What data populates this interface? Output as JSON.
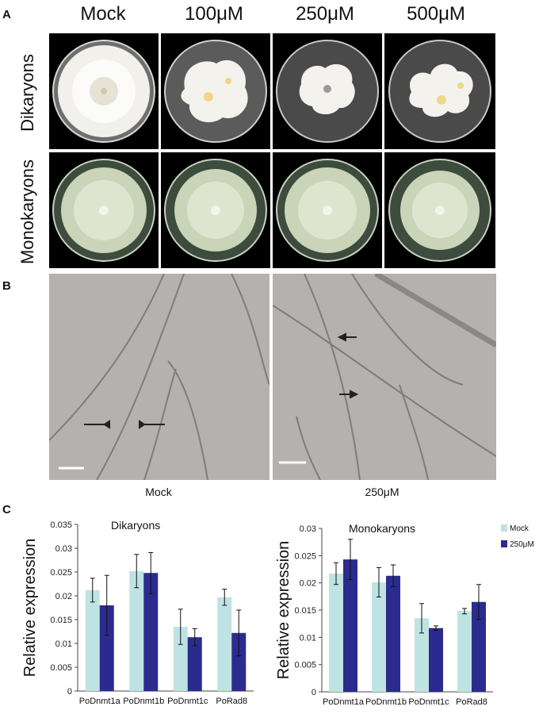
{
  "panel_a": {
    "letter": "A",
    "concentrations": [
      "Mock",
      "100μM",
      "250μM",
      "500μM"
    ],
    "rows": [
      "Dikaryons",
      "Monokaryons"
    ]
  },
  "panel_b": {
    "letter": "B",
    "captions": [
      "Mock",
      "250μM"
    ]
  },
  "panel_c": {
    "letter": "C",
    "legend": [
      "Mock",
      "250μM"
    ],
    "colors": {
      "mock": "#bfe3e3",
      "treated": "#2b2b8f"
    }
  },
  "chart_data": [
    {
      "type": "bar",
      "title": "Dikaryons",
      "ylabel": "Relative  expression",
      "categories": [
        "PoDnmt1a",
        "PoDnmt1b",
        "PoDnmt1c",
        "PoRad8"
      ],
      "ylim": [
        0,
        0.035
      ],
      "yticks": [
        "0",
        "0.005",
        "0.01",
        "0.015",
        "0.02",
        "0.025",
        "0.03",
        "0.035"
      ],
      "series": [
        {
          "name": "Mock",
          "values": [
            0.0212,
            0.0252,
            0.0135,
            0.0197
          ],
          "errors": [
            0.0025,
            0.0035,
            0.0037,
            0.0017
          ]
        },
        {
          "name": "250μM",
          "values": [
            0.018,
            0.0248,
            0.0113,
            0.0122
          ],
          "errors": [
            0.0063,
            0.0043,
            0.0018,
            0.0048
          ]
        }
      ]
    },
    {
      "type": "bar",
      "title": "Monokaryons",
      "ylabel": "Relative  expression",
      "categories": [
        "PoDnmt1a",
        "PoDnmt1b",
        "PoDnmt1c",
        "PoRad8"
      ],
      "ylim": [
        0,
        0.03
      ],
      "yticks": [
        "0",
        "0.005",
        "0.01",
        "0.015",
        "0.02",
        "0.025",
        "0.03"
      ],
      "series": [
        {
          "name": "Mock",
          "values": [
            0.0217,
            0.0201,
            0.0135,
            0.0148
          ],
          "errors": [
            0.002,
            0.0027,
            0.0027,
            0.0005
          ]
        },
        {
          "name": "250μM",
          "values": [
            0.0243,
            0.0213,
            0.0117,
            0.0165
          ],
          "errors": [
            0.0037,
            0.002,
            0.0004,
            0.0032
          ]
        }
      ]
    }
  ]
}
